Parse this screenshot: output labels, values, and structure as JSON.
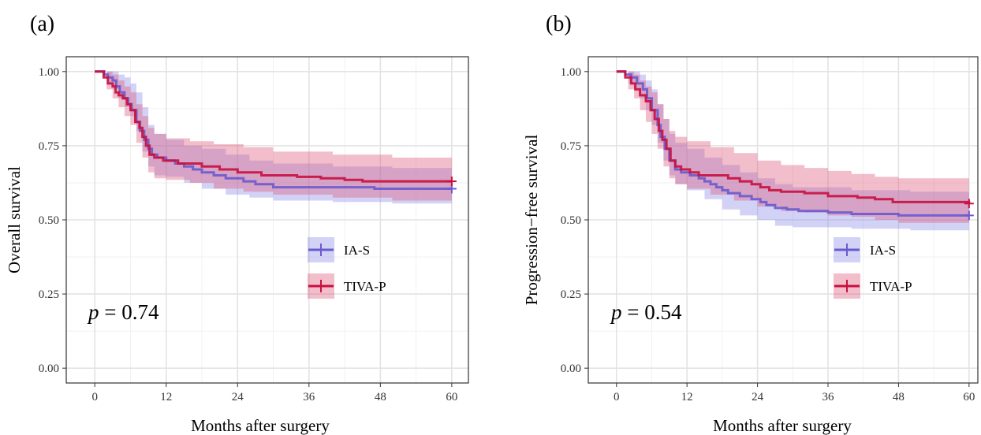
{
  "chart_data": [
    {
      "type": "line",
      "panel_label": "(a)",
      "xlabel": "Months after surgery",
      "ylabel": "Overall survival",
      "xlim": [
        0,
        60
      ],
      "ylim": [
        0,
        1
      ],
      "x_ticks": [
        "0",
        "12",
        "24",
        "36",
        "48",
        "60"
      ],
      "y_ticks": [
        "0.00",
        "0.25",
        "0.50",
        "0.75",
        "1.00"
      ],
      "grid": true,
      "legend_position": "bottom-right",
      "annotation": {
        "p_label": "p",
        "p_text": " = 0.74"
      },
      "series": [
        {
          "name": "IA-S",
          "color": "#6a5acd",
          "band_color": "#8a8ae8",
          "points": [
            [
              0,
              1.0
            ],
            [
              1,
              1.0
            ],
            [
              1.6,
              0.99
            ],
            [
              2.2,
              0.98
            ],
            [
              3,
              0.97
            ],
            [
              3.6,
              0.95
            ],
            [
              4.2,
              0.93
            ],
            [
              5,
              0.91
            ],
            [
              5.6,
              0.89
            ],
            [
              6.2,
              0.87
            ],
            [
              7,
              0.83
            ],
            [
              7.6,
              0.8
            ],
            [
              8.3,
              0.77
            ],
            [
              9,
              0.74
            ],
            [
              9.6,
              0.72
            ],
            [
              10.5,
              0.71
            ],
            [
              12,
              0.7
            ],
            [
              13.5,
              0.69
            ],
            [
              15,
              0.68
            ],
            [
              16.5,
              0.67
            ],
            [
              18,
              0.66
            ],
            [
              20,
              0.65
            ],
            [
              22,
              0.64
            ],
            [
              25,
              0.63
            ],
            [
              27,
              0.62
            ],
            [
              30,
              0.61
            ],
            [
              40,
              0.61
            ],
            [
              47,
              0.605
            ],
            [
              60,
              0.605
            ]
          ],
          "band": [
            [
              0,
              1.0,
              1.0
            ],
            [
              1,
              1.0,
              1.0
            ],
            [
              2,
              0.96,
              1.0
            ],
            [
              3,
              0.94,
              1.0
            ],
            [
              4,
              0.91,
              0.99
            ],
            [
              5,
              0.88,
              0.98
            ],
            [
              6,
              0.85,
              0.96
            ],
            [
              7,
              0.8,
              0.93
            ],
            [
              8,
              0.73,
              0.88
            ],
            [
              9,
              0.68,
              0.82
            ],
            [
              10,
              0.65,
              0.79
            ],
            [
              12,
              0.645,
              0.77
            ],
            [
              15,
              0.625,
              0.75
            ],
            [
              18,
              0.605,
              0.74
            ],
            [
              22,
              0.585,
              0.72
            ],
            [
              26,
              0.575,
              0.7
            ],
            [
              30,
              0.565,
              0.69
            ],
            [
              40,
              0.56,
              0.68
            ],
            [
              50,
              0.555,
              0.675
            ],
            [
              60,
              0.55,
              0.675
            ]
          ],
          "censor": [
            60,
            0.605
          ]
        },
        {
          "name": "TIVA-P",
          "color": "#c8103e",
          "band_color": "#dd5577",
          "points": [
            [
              0,
              1.0
            ],
            [
              1,
              1.0
            ],
            [
              1.5,
              0.98
            ],
            [
              2.2,
              0.96
            ],
            [
              3,
              0.95
            ],
            [
              3.5,
              0.93
            ],
            [
              4,
              0.92
            ],
            [
              4.7,
              0.91
            ],
            [
              5.4,
              0.89
            ],
            [
              6,
              0.87
            ],
            [
              6.8,
              0.83
            ],
            [
              7.5,
              0.81
            ],
            [
              8,
              0.78
            ],
            [
              8.6,
              0.75
            ],
            [
              9.2,
              0.72
            ],
            [
              10,
              0.71
            ],
            [
              11.5,
              0.7
            ],
            [
              14,
              0.69
            ],
            [
              18,
              0.68
            ],
            [
              21,
              0.67
            ],
            [
              24,
              0.66
            ],
            [
              28,
              0.65
            ],
            [
              34,
              0.645
            ],
            [
              38,
              0.64
            ],
            [
              42,
              0.635
            ],
            [
              45,
              0.63
            ],
            [
              60,
              0.63
            ]
          ],
          "band": [
            [
              0,
              1.0,
              1.0
            ],
            [
              1,
              1.0,
              1.0
            ],
            [
              2,
              0.94,
              1.0
            ],
            [
              3,
              0.91,
              0.99
            ],
            [
              4,
              0.88,
              0.97
            ],
            [
              5,
              0.85,
              0.95
            ],
            [
              6,
              0.82,
              0.93
            ],
            [
              7,
              0.76,
              0.89
            ],
            [
              8,
              0.71,
              0.85
            ],
            [
              9,
              0.66,
              0.81
            ],
            [
              10,
              0.64,
              0.79
            ],
            [
              12,
              0.635,
              0.775
            ],
            [
              16,
              0.625,
              0.765
            ],
            [
              20,
              0.605,
              0.755
            ],
            [
              25,
              0.595,
              0.745
            ],
            [
              30,
              0.585,
              0.73
            ],
            [
              40,
              0.575,
              0.72
            ],
            [
              50,
              0.565,
              0.71
            ],
            [
              60,
              0.56,
              0.71
            ]
          ],
          "censor": [
            60,
            0.63
          ]
        }
      ]
    },
    {
      "type": "line",
      "panel_label": "(b)",
      "xlabel": "Months after surgery",
      "ylabel": "Progression−free survival",
      "xlim": [
        0,
        60
      ],
      "ylim": [
        0,
        1
      ],
      "x_ticks": [
        "0",
        "12",
        "24",
        "36",
        "48",
        "60"
      ],
      "y_ticks": [
        "0.00",
        "0.25",
        "0.50",
        "0.75",
        "1.00"
      ],
      "grid": true,
      "legend_position": "bottom-right",
      "annotation": {
        "p_label": "p",
        "p_text": " = 0.54"
      },
      "series": [
        {
          "name": "IA-S",
          "color": "#6a5acd",
          "band_color": "#8a8ae8",
          "points": [
            [
              0,
              1.0
            ],
            [
              1.5,
              0.99
            ],
            [
              2.5,
              0.98
            ],
            [
              3.5,
              0.96
            ],
            [
              4.5,
              0.94
            ],
            [
              5.2,
              0.91
            ],
            [
              6,
              0.87
            ],
            [
              7,
              0.82
            ],
            [
              7.5,
              0.78
            ],
            [
              8.2,
              0.74
            ],
            [
              9,
              0.7
            ],
            [
              10,
              0.67
            ],
            [
              11,
              0.66
            ],
            [
              12.5,
              0.65
            ],
            [
              14,
              0.64
            ],
            [
              15,
              0.63
            ],
            [
              16,
              0.62
            ],
            [
              17,
              0.61
            ],
            [
              18,
              0.6
            ],
            [
              19,
              0.59
            ],
            [
              21,
              0.58
            ],
            [
              23,
              0.57
            ],
            [
              24.5,
              0.56
            ],
            [
              25.5,
              0.55
            ],
            [
              27,
              0.54
            ],
            [
              29,
              0.535
            ],
            [
              31,
              0.53
            ],
            [
              36,
              0.525
            ],
            [
              40,
              0.52
            ],
            [
              48,
              0.515
            ],
            [
              60,
              0.515
            ]
          ],
          "band": [
            [
              0,
              1.0,
              1.0
            ],
            [
              1,
              1.0,
              1.0
            ],
            [
              2,
              0.96,
              1.0
            ],
            [
              3,
              0.94,
              1.0
            ],
            [
              4,
              0.91,
              0.99
            ],
            [
              5,
              0.87,
              0.97
            ],
            [
              6,
              0.82,
              0.94
            ],
            [
              7,
              0.76,
              0.89
            ],
            [
              8,
              0.7,
              0.84
            ],
            [
              9,
              0.65,
              0.79
            ],
            [
              10,
              0.62,
              0.76
            ],
            [
              12,
              0.6,
              0.74
            ],
            [
              15,
              0.57,
              0.71
            ],
            [
              18,
              0.535,
              0.685
            ],
            [
              21,
              0.515,
              0.66
            ],
            [
              24,
              0.5,
              0.64
            ],
            [
              27,
              0.48,
              0.62
            ],
            [
              30,
              0.475,
              0.61
            ],
            [
              40,
              0.47,
              0.6
            ],
            [
              50,
              0.465,
              0.595
            ],
            [
              60,
              0.46,
              0.59
            ]
          ],
          "censor": [
            60,
            0.515
          ]
        },
        {
          "name": "TIVA-P",
          "color": "#c8103e",
          "band_color": "#dd5577",
          "points": [
            [
              0,
              1.0
            ],
            [
              1,
              1.0
            ],
            [
              1.5,
              0.98
            ],
            [
              2.5,
              0.96
            ],
            [
              3.2,
              0.94
            ],
            [
              4,
              0.92
            ],
            [
              5,
              0.9
            ],
            [
              5.8,
              0.87
            ],
            [
              6.5,
              0.84
            ],
            [
              7.2,
              0.8
            ],
            [
              7.8,
              0.77
            ],
            [
              8.5,
              0.74
            ],
            [
              9.2,
              0.7
            ],
            [
              10,
              0.68
            ],
            [
              11,
              0.67
            ],
            [
              12.5,
              0.66
            ],
            [
              14,
              0.65
            ],
            [
              19,
              0.64
            ],
            [
              21,
              0.63
            ],
            [
              23,
              0.62
            ],
            [
              24.5,
              0.61
            ],
            [
              26,
              0.6
            ],
            [
              28,
              0.595
            ],
            [
              32,
              0.59
            ],
            [
              36,
              0.58
            ],
            [
              41,
              0.575
            ],
            [
              44,
              0.57
            ],
            [
              47,
              0.56
            ],
            [
              60,
              0.555
            ]
          ],
          "band": [
            [
              0,
              1.0,
              1.0
            ],
            [
              1,
              1.0,
              1.0
            ],
            [
              2,
              0.94,
              1.0
            ],
            [
              3,
              0.91,
              0.99
            ],
            [
              4,
              0.87,
              0.97
            ],
            [
              5,
              0.83,
              0.95
            ],
            [
              6,
              0.79,
              0.93
            ],
            [
              7,
              0.74,
              0.89
            ],
            [
              8,
              0.68,
              0.84
            ],
            [
              9,
              0.64,
              0.8
            ],
            [
              10,
              0.62,
              0.78
            ],
            [
              12,
              0.605,
              0.765
            ],
            [
              16,
              0.585,
              0.745
            ],
            [
              20,
              0.565,
              0.725
            ],
            [
              24,
              0.545,
              0.7
            ],
            [
              28,
              0.53,
              0.685
            ],
            [
              32,
              0.525,
              0.675
            ],
            [
              36,
              0.515,
              0.665
            ],
            [
              40,
              0.51,
              0.655
            ],
            [
              44,
              0.5,
              0.645
            ],
            [
              48,
              0.49,
              0.64
            ],
            [
              60,
              0.485,
              0.635
            ]
          ],
          "censor": [
            60,
            0.555
          ]
        }
      ]
    }
  ]
}
